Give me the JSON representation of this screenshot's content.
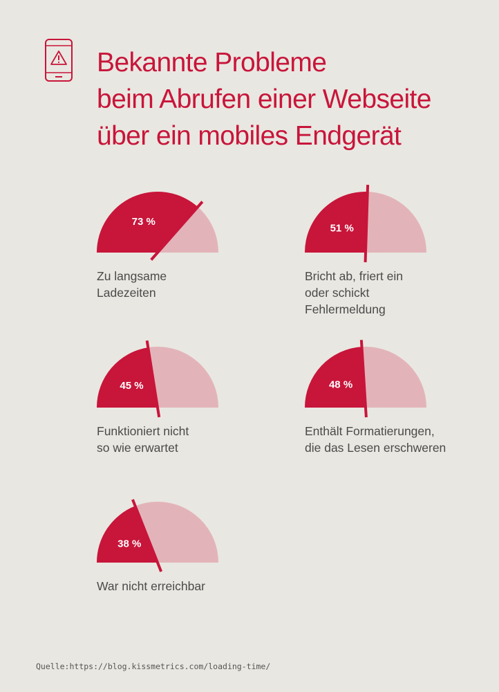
{
  "header": {
    "icon": "mobile-warning-icon",
    "title_lines": [
      "Bekannte Probleme",
      "beim Abrufen einer Webseite",
      "über ein mobiles Endgerät"
    ]
  },
  "colors": {
    "accent": "#c8153a",
    "remainder": "#e2b4b9",
    "background": "#e9e7e1",
    "text": "#4a4a4a"
  },
  "chart_data": {
    "type": "gauge",
    "title": "Bekannte Probleme beim Abrufen einer Webseite über ein mobiles Endgerät",
    "unit": "%",
    "max": 100,
    "items": [
      {
        "value": 73,
        "display": "73 %",
        "label_lines": [
          "Zu langsame",
          "Ladezeiten"
        ]
      },
      {
        "value": 51,
        "display": "51 %",
        "label_lines": [
          "Bricht ab, friert ein",
          "oder schickt",
          "Fehlermeldung"
        ]
      },
      {
        "value": 45,
        "display": "45 %",
        "label_lines": [
          "Funktioniert nicht",
          "so wie erwartet"
        ]
      },
      {
        "value": 48,
        "display": "48 %",
        "label_lines": [
          "Enthält Formatierungen,",
          "die das Lesen erschweren"
        ]
      },
      {
        "value": 38,
        "display": "38 %",
        "label_lines": [
          "War nicht erreichbar"
        ]
      }
    ]
  },
  "source": {
    "label": "Quelle:",
    "url": "https://blog.kissmetrics.com/loading-time/"
  }
}
